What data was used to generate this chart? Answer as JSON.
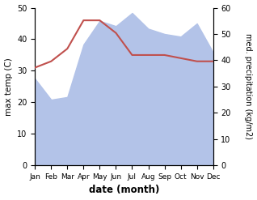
{
  "months": [
    "Jan",
    "Feb",
    "Mar",
    "Apr",
    "May",
    "Jun",
    "Jul",
    "Aug",
    "Sep",
    "Oct",
    "Nov",
    "Dec"
  ],
  "temp": [
    31,
    33,
    37,
    46,
    46,
    42,
    35,
    35,
    35,
    34,
    33,
    33
  ],
  "precip": [
    33,
    25,
    26,
    46,
    55,
    53,
    58,
    52,
    50,
    49,
    54,
    43
  ],
  "temp_color": "#c0504d",
  "precip_fill_color": "#b3c3e8",
  "temp_scale_max": 50,
  "temp_scale_min": 0,
  "precip_scale_max": 60,
  "precip_scale_min": 0,
  "xlabel": "date (month)",
  "ylabel_left": "max temp (C)",
  "ylabel_right": "med. precipitation (kg/m2)",
  "bg_color": "#ffffff",
  "yticks_left": [
    0,
    10,
    20,
    30,
    40,
    50
  ],
  "yticks_right": [
    0,
    10,
    20,
    30,
    40,
    50,
    60
  ]
}
